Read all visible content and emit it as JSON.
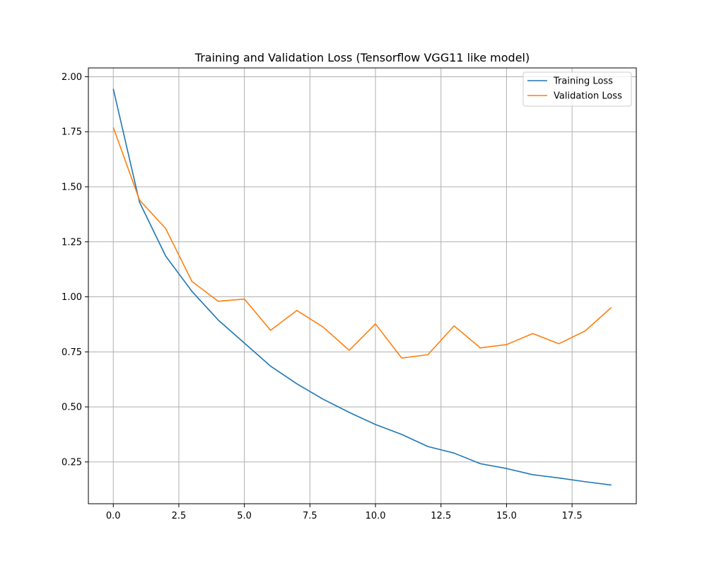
{
  "chart_data": {
    "type": "line",
    "title": "Training and Validation Loss (Tensorflow VGG11 like model)",
    "xlabel": "",
    "ylabel": "",
    "x": [
      0,
      1,
      2,
      3,
      4,
      5,
      6,
      7,
      8,
      9,
      10,
      11,
      12,
      13,
      14,
      15,
      16,
      17,
      18,
      19
    ],
    "xlim": [
      -0.95,
      19.95
    ],
    "ylim": [
      0.06,
      2.04
    ],
    "xticks": [
      0.0,
      2.5,
      5.0,
      7.5,
      10.0,
      12.5,
      15.0,
      17.5
    ],
    "xtick_labels": [
      "0.0",
      "2.5",
      "5.0",
      "7.5",
      "10.0",
      "12.5",
      "15.0",
      "17.5"
    ],
    "yticks": [
      0.25,
      0.5,
      0.75,
      1.0,
      1.25,
      1.5,
      1.75,
      2.0
    ],
    "ytick_labels": [
      "0.25",
      "0.50",
      "0.75",
      "1.00",
      "1.25",
      "1.50",
      "1.75",
      "2.00"
    ],
    "grid": true,
    "legend_position": "top-right",
    "series": [
      {
        "name": "Training Loss",
        "color": "#1f77b4",
        "values": [
          1.945,
          1.43,
          1.185,
          1.025,
          0.895,
          0.79,
          0.685,
          0.605,
          0.535,
          0.475,
          0.42,
          0.375,
          0.32,
          0.29,
          0.242,
          0.22,
          0.192,
          0.177,
          0.16,
          0.145
        ]
      },
      {
        "name": "Validation Loss",
        "color": "#ff7f0e",
        "values": [
          1.77,
          1.44,
          1.31,
          1.07,
          0.98,
          0.99,
          0.848,
          0.938,
          0.863,
          0.757,
          0.877,
          0.722,
          0.737,
          0.868,
          0.768,
          0.783,
          0.833,
          0.787,
          0.845,
          0.952
        ]
      }
    ]
  }
}
